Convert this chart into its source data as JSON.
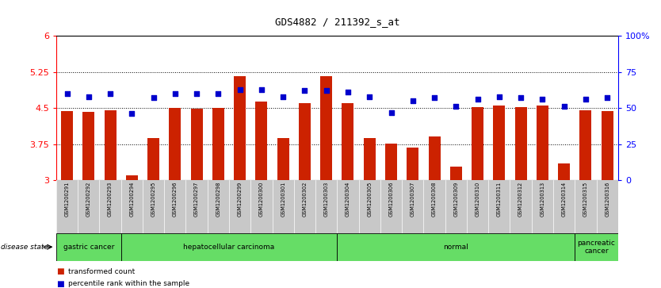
{
  "title": "GDS4882 / 211392_s_at",
  "samples": [
    "GSM1200291",
    "GSM1200292",
    "GSM1200293",
    "GSM1200294",
    "GSM1200295",
    "GSM1200296",
    "GSM1200297",
    "GSM1200298",
    "GSM1200299",
    "GSM1200300",
    "GSM1200301",
    "GSM1200302",
    "GSM1200303",
    "GSM1200304",
    "GSM1200305",
    "GSM1200306",
    "GSM1200307",
    "GSM1200308",
    "GSM1200309",
    "GSM1200310",
    "GSM1200311",
    "GSM1200312",
    "GSM1200313",
    "GSM1200314",
    "GSM1200315",
    "GSM1200316"
  ],
  "transformed_count": [
    4.44,
    4.42,
    4.45,
    3.1,
    3.88,
    4.5,
    4.48,
    4.5,
    5.17,
    4.63,
    3.88,
    4.6,
    5.17,
    4.6,
    3.88,
    3.76,
    3.68,
    3.9,
    3.28,
    4.52,
    4.55,
    4.52,
    4.55,
    3.34,
    4.45,
    4.43
  ],
  "percentile_rank": [
    60,
    58,
    60,
    46,
    57,
    60,
    60,
    60,
    63,
    63,
    58,
    62,
    62,
    61,
    58,
    47,
    55,
    57,
    51,
    56,
    58,
    57,
    56,
    51,
    56,
    57
  ],
  "group_boundaries": [
    0,
    3,
    13,
    24,
    26
  ],
  "group_labels": [
    "gastric cancer",
    "hepatocellular carcinoma",
    "normal",
    "pancreatic\ncancer"
  ],
  "group_color": "#66DD66",
  "ylim_left": [
    3.0,
    6.0
  ],
  "ylim_right": [
    0,
    100
  ],
  "yticks_left": [
    3.0,
    3.75,
    4.5,
    5.25,
    6.0
  ],
  "ytick_labels_left": [
    "3",
    "3.75",
    "4.5",
    "5.25",
    "6"
  ],
  "yticks_right": [
    0,
    25,
    50,
    75,
    100
  ],
  "ytick_labels_right": [
    "0",
    "25",
    "50",
    "75",
    "100%"
  ],
  "bar_color": "#CC2200",
  "dot_color": "#0000CC",
  "bar_bottom": 3.0,
  "hline_values": [
    3.75,
    4.5,
    5.25
  ],
  "xlabels_bg": "#C8C8C8",
  "legend_red_label": "transformed count",
  "legend_blue_label": "percentile rank within the sample",
  "disease_state_label": "disease state"
}
